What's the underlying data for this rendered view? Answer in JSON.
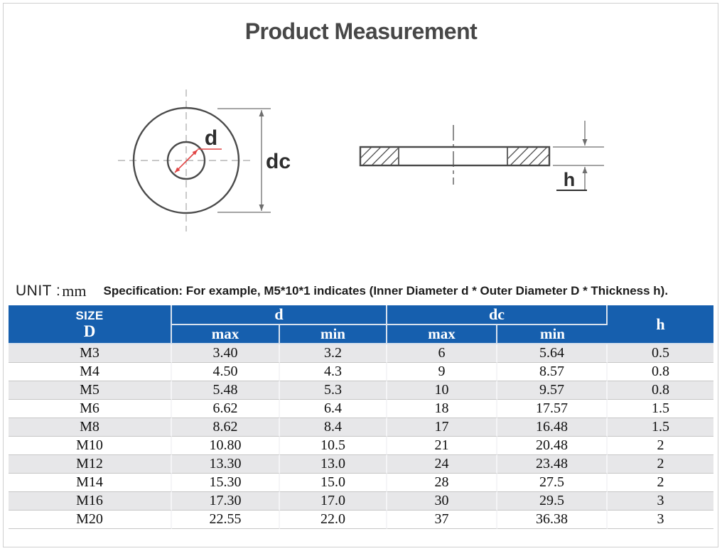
{
  "page": {
    "title": "Product Measurement"
  },
  "colors": {
    "header_bg": "#165fae",
    "row_alt_bg": "#e7e7e9",
    "dimension_red": "#e14444"
  },
  "diagram": {
    "front_view": {
      "inner_diameter_label": "d",
      "outer_diameter_label": "dc"
    },
    "section_view": {
      "thickness_label": "h"
    }
  },
  "note": {
    "unit_label": "UNIT :",
    "unit_value": "mm",
    "specification": "Specification: For example, M5*10*1 indicates (Inner Diameter d * Outer Diameter D * Thickness h)."
  },
  "table": {
    "header": {
      "size_top": "SIZE",
      "size_bottom": "D",
      "d_group": "d",
      "dc_group": "dc",
      "h_col": "h",
      "max_label": "max",
      "min_label": "min"
    },
    "rows": [
      {
        "size": "M3",
        "d_max": "3.40",
        "d_min": "3.2",
        "dc_max": "6",
        "dc_min": "5.64",
        "h": "0.5"
      },
      {
        "size": "M4",
        "d_max": "4.50",
        "d_min": "4.3",
        "dc_max": "9",
        "dc_min": "8.57",
        "h": "0.8"
      },
      {
        "size": "M5",
        "d_max": "5.48",
        "d_min": "5.3",
        "dc_max": "10",
        "dc_min": "9.57",
        "h": "0.8"
      },
      {
        "size": "M6",
        "d_max": "6.62",
        "d_min": "6.4",
        "dc_max": "18",
        "dc_min": "17.57",
        "h": "1.5"
      },
      {
        "size": "M8",
        "d_max": "8.62",
        "d_min": "8.4",
        "dc_max": "17",
        "dc_min": "16.48",
        "h": "1.5"
      },
      {
        "size": "M10",
        "d_max": "10.80",
        "d_min": "10.5",
        "dc_max": "21",
        "dc_min": "20.48",
        "h": "2"
      },
      {
        "size": "M12",
        "d_max": "13.30",
        "d_min": "13.0",
        "dc_max": "24",
        "dc_min": "23.48",
        "h": "2"
      },
      {
        "size": "M14",
        "d_max": "15.30",
        "d_min": "15.0",
        "dc_max": "28",
        "dc_min": "27.5",
        "h": "2"
      },
      {
        "size": "M16",
        "d_max": "17.30",
        "d_min": "17.0",
        "dc_max": "30",
        "dc_min": "29.5",
        "h": "3"
      },
      {
        "size": "M20",
        "d_max": "22.55",
        "d_min": "22.0",
        "dc_max": "37",
        "dc_min": "36.38",
        "h": "3"
      }
    ]
  }
}
